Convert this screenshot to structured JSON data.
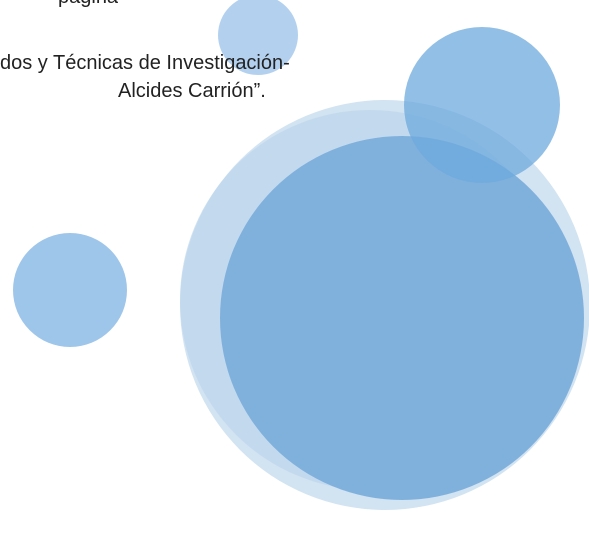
{
  "document": {
    "lines": [
      "pagina",
      "dos y Técnicas de Investigación-",
      "Alcides Carrión”."
    ]
  }
}
